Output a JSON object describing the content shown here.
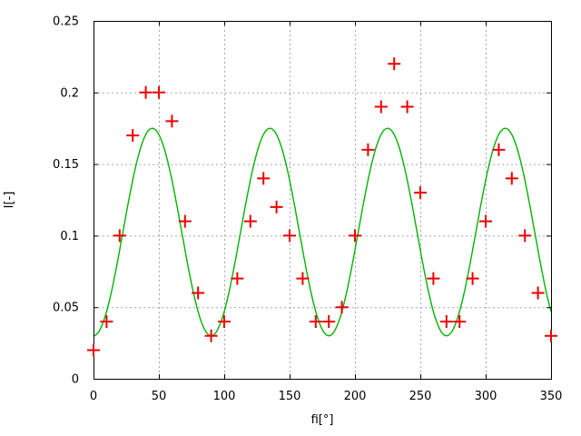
{
  "chart_data": {
    "type": "scatter",
    "title": "",
    "xlabel": "fi[°]",
    "ylabel": "I[-]",
    "xlim": [
      0,
      350
    ],
    "ylim": [
      0,
      0.25
    ],
    "x_ticks": [
      {
        "value": 0,
        "label": "0"
      },
      {
        "value": 50,
        "label": "50"
      },
      {
        "value": 100,
        "label": "100"
      },
      {
        "value": 150,
        "label": "150"
      },
      {
        "value": 200,
        "label": "200"
      },
      {
        "value": 250,
        "label": "250"
      },
      {
        "value": 300,
        "label": "300"
      },
      {
        "value": 350,
        "label": "350"
      }
    ],
    "y_ticks": [
      {
        "value": 0,
        "label": "0"
      },
      {
        "value": 0.05,
        "label": "0.05"
      },
      {
        "value": 0.1,
        "label": "0.1"
      },
      {
        "value": 0.15,
        "label": "0.15"
      },
      {
        "value": 0.2,
        "label": "0.2"
      },
      {
        "value": 0.25,
        "label": "0.25"
      }
    ],
    "grid": true,
    "legend": "none",
    "series": [
      {
        "name": "measured-points",
        "type": "scatter",
        "marker": "plus",
        "color": "#ee0000",
        "x": [
          0,
          10,
          20,
          30,
          40,
          50,
          60,
          70,
          80,
          90,
          100,
          110,
          120,
          130,
          140,
          150,
          160,
          170,
          180,
          190,
          200,
          210,
          220,
          230,
          240,
          250,
          260,
          270,
          280,
          290,
          300,
          310,
          320,
          330,
          340,
          350
        ],
        "y": [
          0.02,
          0.04,
          0.1,
          0.17,
          0.2,
          0.2,
          0.18,
          0.11,
          0.06,
          0.03,
          0.04,
          0.07,
          0.11,
          0.14,
          0.12,
          0.1,
          0.07,
          0.04,
          0.04,
          0.05,
          0.1,
          0.16,
          0.19,
          0.22,
          0.19,
          0.13,
          0.07,
          0.04,
          0.04,
          0.07,
          0.11,
          0.16,
          0.14,
          0.1,
          0.06,
          0.03
        ]
      },
      {
        "name": "fit-curve",
        "type": "line",
        "color": "#00b400",
        "model": "y = 0.1025 - 0.0725 * cos(4 * fi)",
        "mean": 0.1025,
        "amplitude": 0.0725,
        "period_deg": 90,
        "curve_min": 0.03,
        "curve_max": 0.175,
        "maxima_at_deg": [
          45,
          135,
          225,
          315
        ],
        "minima_at_deg": [
          0,
          90,
          180,
          270
        ]
      }
    ],
    "colors": {
      "points": "#ee0000",
      "curve": "#00b400",
      "grid": "#a8a8a8",
      "border": "#000000",
      "background": "#ffffff",
      "text": "#000000"
    }
  }
}
